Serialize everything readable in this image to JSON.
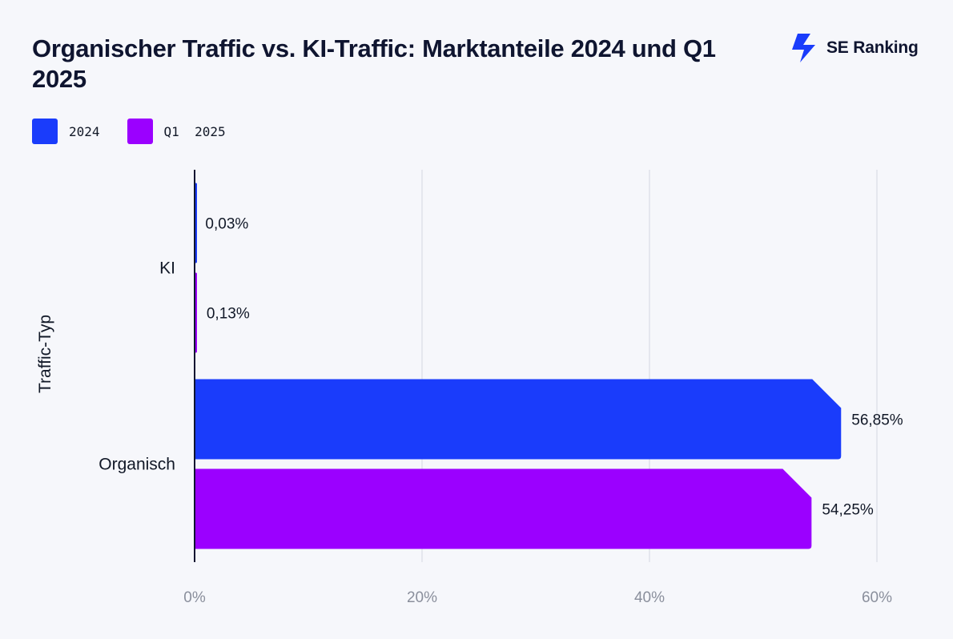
{
  "header": {
    "title": "Organischer Traffic vs. KI-Traffic: Marktanteile 2024 und Q1 2025",
    "brand_name": "SE Ranking",
    "brand_icon": "se-ranking-logo-icon"
  },
  "colors": {
    "series_2024": "#1a3cfb",
    "series_q1_2025": "#9b00ff",
    "axis": "#0f1530",
    "grid": "#dfe2ea",
    "tick_text": "#8a8f9c",
    "brand": "#1a3cfb"
  },
  "chart_data": {
    "type": "bar",
    "orientation": "horizontal",
    "categories": [
      "KI",
      "Organisch"
    ],
    "series": [
      {
        "name": "2024",
        "values": [
          0.03,
          56.85
        ],
        "labels": [
          "0,03%",
          "56,85%"
        ]
      },
      {
        "name": "Q1  2025",
        "values": [
          0.13,
          54.25
        ],
        "labels": [
          "0,13%",
          "54,25%"
        ]
      }
    ],
    "xlim": [
      0,
      60
    ],
    "xticks": [
      0,
      20,
      40,
      60
    ],
    "xtick_labels": [
      "0%",
      "20%",
      "40%",
      "60%"
    ],
    "ylabel": "Traffic-Typ",
    "xlabel": "",
    "grid": true,
    "legend_position": "top-left"
  }
}
